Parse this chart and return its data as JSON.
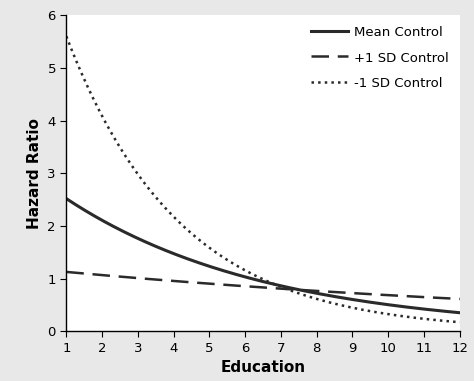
{
  "xlabel": "Education",
  "ylabel": "Hazard Ratio",
  "xlim": [
    1,
    12
  ],
  "ylim": [
    0,
    6
  ],
  "yticks": [
    0,
    1,
    2,
    3,
    4,
    5,
    6
  ],
  "xticks": [
    1,
    2,
    3,
    4,
    5,
    6,
    7,
    8,
    9,
    10,
    11,
    12
  ],
  "mean_control": {
    "label": "Mean Control",
    "a": 2.52,
    "b": -0.178
  },
  "plus1sd_control": {
    "label": "+1 SD Control",
    "a": 1.13,
    "b": -0.055
  },
  "minus1sd_control": {
    "label": "-1 SD Control",
    "a": 5.6,
    "b": -0.315
  },
  "line_color": "#2a2a2a",
  "background_color": "#ffffff",
  "outer_background": "#e8e8e8",
  "legend_fontsize": 9.5,
  "axis_label_fontsize": 11,
  "tick_fontsize": 9.5
}
